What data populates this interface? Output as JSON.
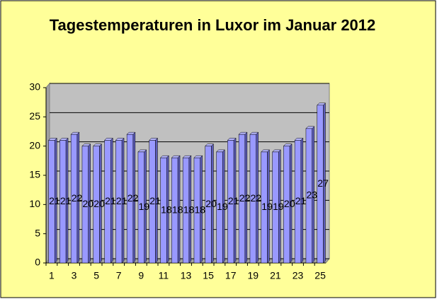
{
  "chart_data": {
    "type": "bar",
    "title": "Tagestemperaturen in Luxor im Januar 2012",
    "categories": [
      1,
      null,
      3,
      null,
      5,
      null,
      7,
      null,
      9,
      null,
      11,
      null,
      13,
      null,
      15,
      null,
      17,
      null,
      19,
      null,
      21,
      null,
      23,
      null,
      25
    ],
    "values": [
      21,
      21,
      22,
      20,
      20,
      21,
      21,
      22,
      19,
      21,
      18,
      18,
      18,
      18,
      20,
      19,
      21,
      22,
      22,
      19,
      19,
      20,
      21,
      23,
      27
    ],
    "color": "#9999ff",
    "ylim": [
      0,
      30
    ],
    "yticks": [
      0,
      5,
      10,
      15,
      20,
      25,
      30
    ],
    "grid": true
  }
}
